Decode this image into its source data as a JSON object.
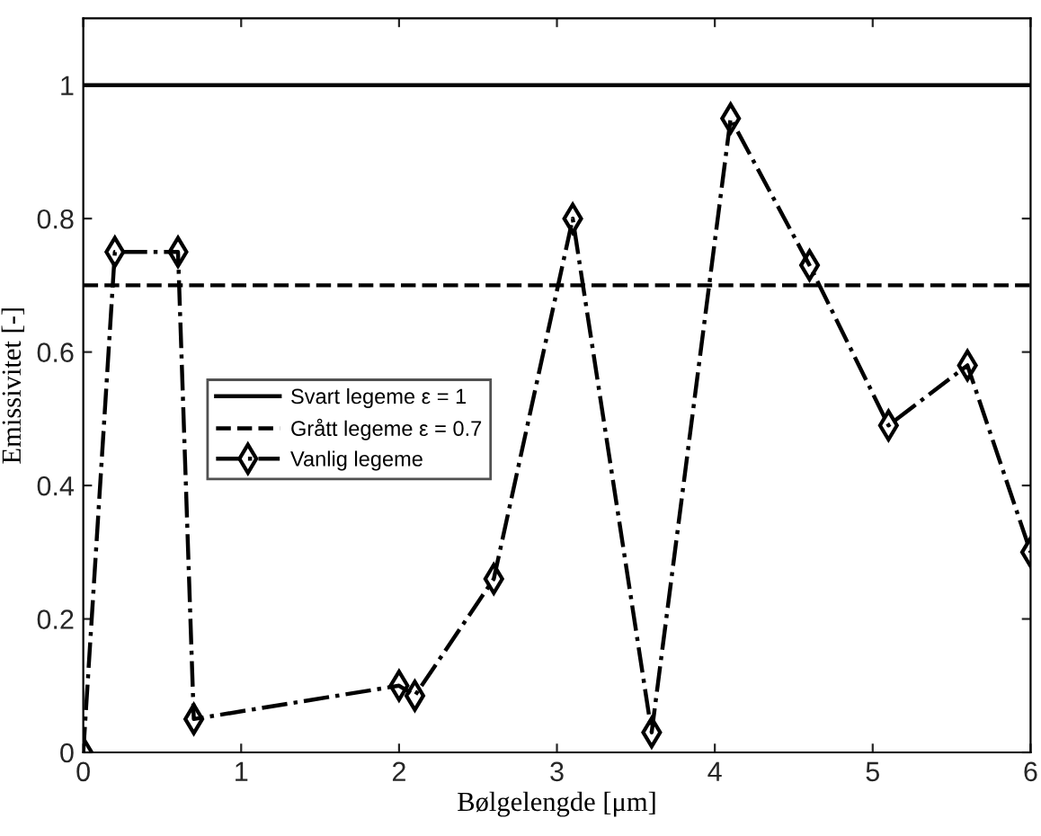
{
  "chart_data": {
    "type": "line",
    "xlabel": "Bølgelengde [μm]",
    "ylabel": "Emissivitet [-]",
    "xlim": [
      0,
      6
    ],
    "ylim": [
      0,
      1.1
    ],
    "xticks": [
      0,
      1,
      2,
      3,
      4,
      5,
      6
    ],
    "yticks": [
      0,
      0.2,
      0.4,
      0.6,
      0.8,
      1
    ],
    "grid": false,
    "legend": "left",
    "series": [
      {
        "name": "Svart legeme ε = 1",
        "color": "#000000",
        "line_style": "solid",
        "marker": "none",
        "x": [
          0,
          6
        ],
        "values": [
          1,
          1
        ]
      },
      {
        "name": "Grått legeme ε = 0.7",
        "color": "#000000",
        "line_style": "dashed",
        "marker": "none",
        "x": [
          0,
          6
        ],
        "values": [
          0.7,
          0.7
        ]
      },
      {
        "name": "Vanlig legeme",
        "color": "#000000",
        "line_style": "dashdot",
        "marker": "diamond",
        "x": [
          0,
          0.2,
          0.6,
          0.7,
          2.0,
          2.1,
          2.6,
          3.1,
          3.6,
          4.1,
          4.6,
          5.1,
          5.6,
          6.0
        ],
        "values": [
          0,
          0.75,
          0.75,
          0.05,
          0.1,
          0.085,
          0.26,
          0.8,
          0.03,
          0.95,
          0.73,
          0.49,
          0.58,
          0.3
        ]
      }
    ]
  }
}
